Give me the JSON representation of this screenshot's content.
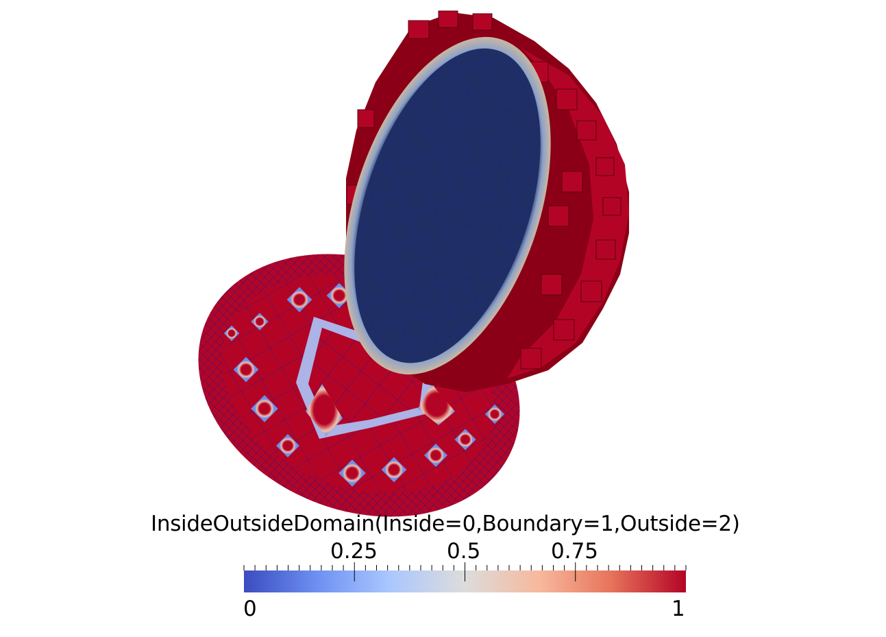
{
  "legend": {
    "title": "InsideOutsideDomain(Inside=0,Boundary=1,Outside=2)",
    "min_label": "0",
    "max_label": "1",
    "ticks": [
      {
        "value": 0.25,
        "label": "0.25"
      },
      {
        "value": 0.5,
        "label": "0.5"
      },
      {
        "value": 0.75,
        "label": "0.75"
      }
    ],
    "range": [
      0,
      1
    ],
    "colormap": [
      "#3b4cc0",
      "#6f92f3",
      "#aac7fd",
      "#dddcdc",
      "#f7b89c",
      "#e7745b",
      "#b40426"
    ]
  },
  "scene": {
    "inside_color": "#1f2f66",
    "boundary_color": "#b40426",
    "mesh_line_color": "#1a1a8c",
    "objects": [
      "flat-disk-mesh",
      "upright-disk-mesh"
    ]
  }
}
